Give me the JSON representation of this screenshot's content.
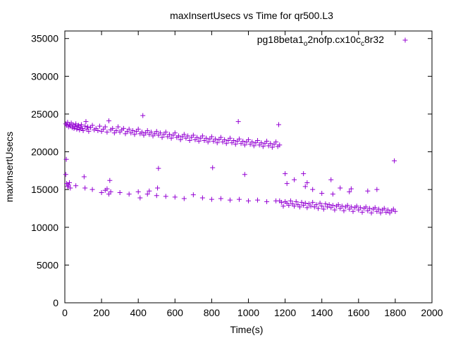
{
  "chart_data": {
    "type": "scatter",
    "title": "maxInsertUsecs vs Time for qr500.L3",
    "xlabel": "Time(s)",
    "ylabel": "maxInsertUsecs",
    "xlim": [
      0,
      2000
    ],
    "ylim": [
      0,
      36000
    ],
    "xticks": [
      0,
      200,
      400,
      600,
      800,
      1000,
      1200,
      1400,
      1600,
      1800,
      2000
    ],
    "yticks": [
      0,
      5000,
      10000,
      15000,
      20000,
      25000,
      30000,
      35000
    ],
    "grid": false,
    "legend_position": "top-right",
    "marker": "+",
    "color": "#9400d3",
    "series": [
      {
        "name": "pg18beta1_o2nofp.cx10c_c8r32",
        "points": [
          [
            5,
            23700
          ],
          [
            10,
            23500
          ],
          [
            15,
            23900
          ],
          [
            20,
            23300
          ],
          [
            25,
            23600
          ],
          [
            30,
            23400
          ],
          [
            35,
            23800
          ],
          [
            40,
            23200
          ],
          [
            45,
            23600
          ],
          [
            50,
            23100
          ],
          [
            55,
            23400
          ],
          [
            60,
            23700
          ],
          [
            65,
            23000
          ],
          [
            70,
            23300
          ],
          [
            75,
            23500
          ],
          [
            80,
            22900
          ],
          [
            85,
            23200
          ],
          [
            90,
            23600
          ],
          [
            95,
            23100
          ],
          [
            100,
            22800
          ],
          [
            110,
            23400
          ],
          [
            115,
            24000
          ],
          [
            120,
            23000
          ],
          [
            125,
            23300
          ],
          [
            130,
            22700
          ],
          [
            140,
            23200
          ],
          [
            150,
            23500
          ],
          [
            160,
            22900
          ],
          [
            170,
            23100
          ],
          [
            180,
            22800
          ],
          [
            190,
            23400
          ],
          [
            200,
            22700
          ],
          [
            210,
            23000
          ],
          [
            220,
            23300
          ],
          [
            230,
            22600
          ],
          [
            240,
            24100
          ],
          [
            250,
            22900
          ],
          [
            260,
            23100
          ],
          [
            270,
            22500
          ],
          [
            280,
            22800
          ],
          [
            290,
            23300
          ],
          [
            300,
            22600
          ],
          [
            310,
            22900
          ],
          [
            320,
            23100
          ],
          [
            330,
            22400
          ],
          [
            340,
            22700
          ],
          [
            350,
            23000
          ],
          [
            360,
            22500
          ],
          [
            370,
            22800
          ],
          [
            380,
            22300
          ],
          [
            390,
            22700
          ],
          [
            400,
            23000
          ],
          [
            410,
            22400
          ],
          [
            420,
            22600
          ],
          [
            425,
            24800
          ],
          [
            430,
            22200
          ],
          [
            440,
            22500
          ],
          [
            450,
            22800
          ],
          [
            460,
            22300
          ],
          [
            470,
            22600
          ],
          [
            480,
            22100
          ],
          [
            490,
            22400
          ],
          [
            500,
            22700
          ],
          [
            510,
            22200
          ],
          [
            520,
            22500
          ],
          [
            530,
            21900
          ],
          [
            540,
            22300
          ],
          [
            550,
            22600
          ],
          [
            560,
            22000
          ],
          [
            570,
            22300
          ],
          [
            580,
            21800
          ],
          [
            590,
            22200
          ],
          [
            600,
            22500
          ],
          [
            610,
            21900
          ],
          [
            620,
            22100
          ],
          [
            630,
            21600
          ],
          [
            640,
            22000
          ],
          [
            650,
            22300
          ],
          [
            660,
            21800
          ],
          [
            670,
            22100
          ],
          [
            680,
            21500
          ],
          [
            690,
            21900
          ],
          [
            700,
            22200
          ],
          [
            710,
            21600
          ],
          [
            720,
            21900
          ],
          [
            730,
            21400
          ],
          [
            740,
            21800
          ],
          [
            750,
            22100
          ],
          [
            760,
            21500
          ],
          [
            770,
            21800
          ],
          [
            780,
            21300
          ],
          [
            790,
            21700
          ],
          [
            800,
            22000
          ],
          [
            810,
            21400
          ],
          [
            820,
            21700
          ],
          [
            830,
            21200
          ],
          [
            840,
            21600
          ],
          [
            850,
            21900
          ],
          [
            860,
            21300
          ],
          [
            870,
            21600
          ],
          [
            880,
            21100
          ],
          [
            890,
            21500
          ],
          [
            900,
            21800
          ],
          [
            910,
            21200
          ],
          [
            920,
            21500
          ],
          [
            930,
            21000
          ],
          [
            940,
            21400
          ],
          [
            945,
            24000
          ],
          [
            950,
            21700
          ],
          [
            960,
            21100
          ],
          [
            970,
            21400
          ],
          [
            980,
            20900
          ],
          [
            990,
            21300
          ],
          [
            1000,
            21600
          ],
          [
            1010,
            21000
          ],
          [
            1020,
            21300
          ],
          [
            1030,
            20800
          ],
          [
            1040,
            21200
          ],
          [
            1050,
            21500
          ],
          [
            1060,
            20900
          ],
          [
            1070,
            21200
          ],
          [
            1080,
            20700
          ],
          [
            1090,
            21100
          ],
          [
            1100,
            21400
          ],
          [
            1110,
            20800
          ],
          [
            1120,
            21100
          ],
          [
            1130,
            20600
          ],
          [
            1140,
            21000
          ],
          [
            1150,
            21300
          ],
          [
            1160,
            20700
          ],
          [
            1165,
            23600
          ],
          [
            1170,
            20900
          ],
          [
            5,
            17000
          ],
          [
            8,
            19000
          ],
          [
            10,
            15800
          ],
          [
            15,
            15400
          ],
          [
            20,
            15600
          ],
          [
            25,
            15900
          ],
          [
            30,
            15200
          ],
          [
            60,
            15500
          ],
          [
            105,
            16700
          ],
          [
            110,
            15200
          ],
          [
            150,
            15000
          ],
          [
            200,
            14600
          ],
          [
            220,
            14900
          ],
          [
            230,
            15100
          ],
          [
            240,
            14400
          ],
          [
            245,
            16200
          ],
          [
            250,
            14700
          ],
          [
            300,
            14600
          ],
          [
            350,
            14400
          ],
          [
            400,
            14700
          ],
          [
            410,
            13900
          ],
          [
            450,
            14400
          ],
          [
            460,
            14800
          ],
          [
            500,
            14200
          ],
          [
            505,
            15200
          ],
          [
            510,
            17800
          ],
          [
            550,
            14100
          ],
          [
            600,
            14000
          ],
          [
            650,
            13800
          ],
          [
            700,
            14300
          ],
          [
            750,
            13900
          ],
          [
            800,
            13700
          ],
          [
            805,
            17900
          ],
          [
            850,
            13800
          ],
          [
            900,
            13600
          ],
          [
            950,
            13700
          ],
          [
            980,
            17000
          ],
          [
            1000,
            13500
          ],
          [
            1050,
            13600
          ],
          [
            1100,
            13400
          ],
          [
            1150,
            13500
          ],
          [
            1170,
            13500
          ],
          [
            1180,
            13300
          ],
          [
            1190,
            12800
          ],
          [
            1200,
            13400
          ],
          [
            1210,
            13200
          ],
          [
            1220,
            12900
          ],
          [
            1230,
            13500
          ],
          [
            1240,
            13100
          ],
          [
            1250,
            12800
          ],
          [
            1260,
            13400
          ],
          [
            1270,
            13000
          ],
          [
            1280,
            12700
          ],
          [
            1290,
            13300
          ],
          [
            1300,
            12900
          ],
          [
            1310,
            13200
          ],
          [
            1320,
            12600
          ],
          [
            1330,
            13100
          ],
          [
            1340,
            12800
          ],
          [
            1350,
            13300
          ],
          [
            1360,
            12700
          ],
          [
            1370,
            13000
          ],
          [
            1380,
            12500
          ],
          [
            1390,
            13200
          ],
          [
            1400,
            12800
          ],
          [
            1410,
            12400
          ],
          [
            1420,
            13100
          ],
          [
            1430,
            12700
          ],
          [
            1440,
            13000
          ],
          [
            1450,
            12600
          ],
          [
            1460,
            12900
          ],
          [
            1470,
            12300
          ],
          [
            1480,
            12800
          ],
          [
            1490,
            13000
          ],
          [
            1500,
            12500
          ],
          [
            1510,
            12800
          ],
          [
            1520,
            12200
          ],
          [
            1530,
            12700
          ],
          [
            1540,
            12900
          ],
          [
            1550,
            12400
          ],
          [
            1560,
            12700
          ],
          [
            1570,
            12100
          ],
          [
            1580,
            12600
          ],
          [
            1590,
            12800
          ],
          [
            1600,
            12300
          ],
          [
            1610,
            12600
          ],
          [
            1620,
            12000
          ],
          [
            1630,
            12500
          ],
          [
            1640,
            12700
          ],
          [
            1650,
            12200
          ],
          [
            1660,
            12500
          ],
          [
            1670,
            11900
          ],
          [
            1680,
            12400
          ],
          [
            1690,
            12600
          ],
          [
            1700,
            12100
          ],
          [
            1710,
            12400
          ],
          [
            1720,
            11900
          ],
          [
            1730,
            12300
          ],
          [
            1740,
            12500
          ],
          [
            1750,
            12000
          ],
          [
            1760,
            12300
          ],
          [
            1770,
            11900
          ],
          [
            1780,
            12200
          ],
          [
            1790,
            12400
          ],
          [
            1795,
            18800
          ],
          [
            1800,
            12100
          ],
          [
            1200,
            17100
          ],
          [
            1210,
            15800
          ],
          [
            1250,
            16300
          ],
          [
            1300,
            17100
          ],
          [
            1310,
            15400
          ],
          [
            1320,
            15900
          ],
          [
            1350,
            15000
          ],
          [
            1400,
            14500
          ],
          [
            1450,
            16300
          ],
          [
            1460,
            14400
          ],
          [
            1500,
            15200
          ],
          [
            1550,
            14700
          ],
          [
            1560,
            15100
          ],
          [
            1650,
            14800
          ],
          [
            1700,
            15000
          ]
        ]
      }
    ]
  }
}
